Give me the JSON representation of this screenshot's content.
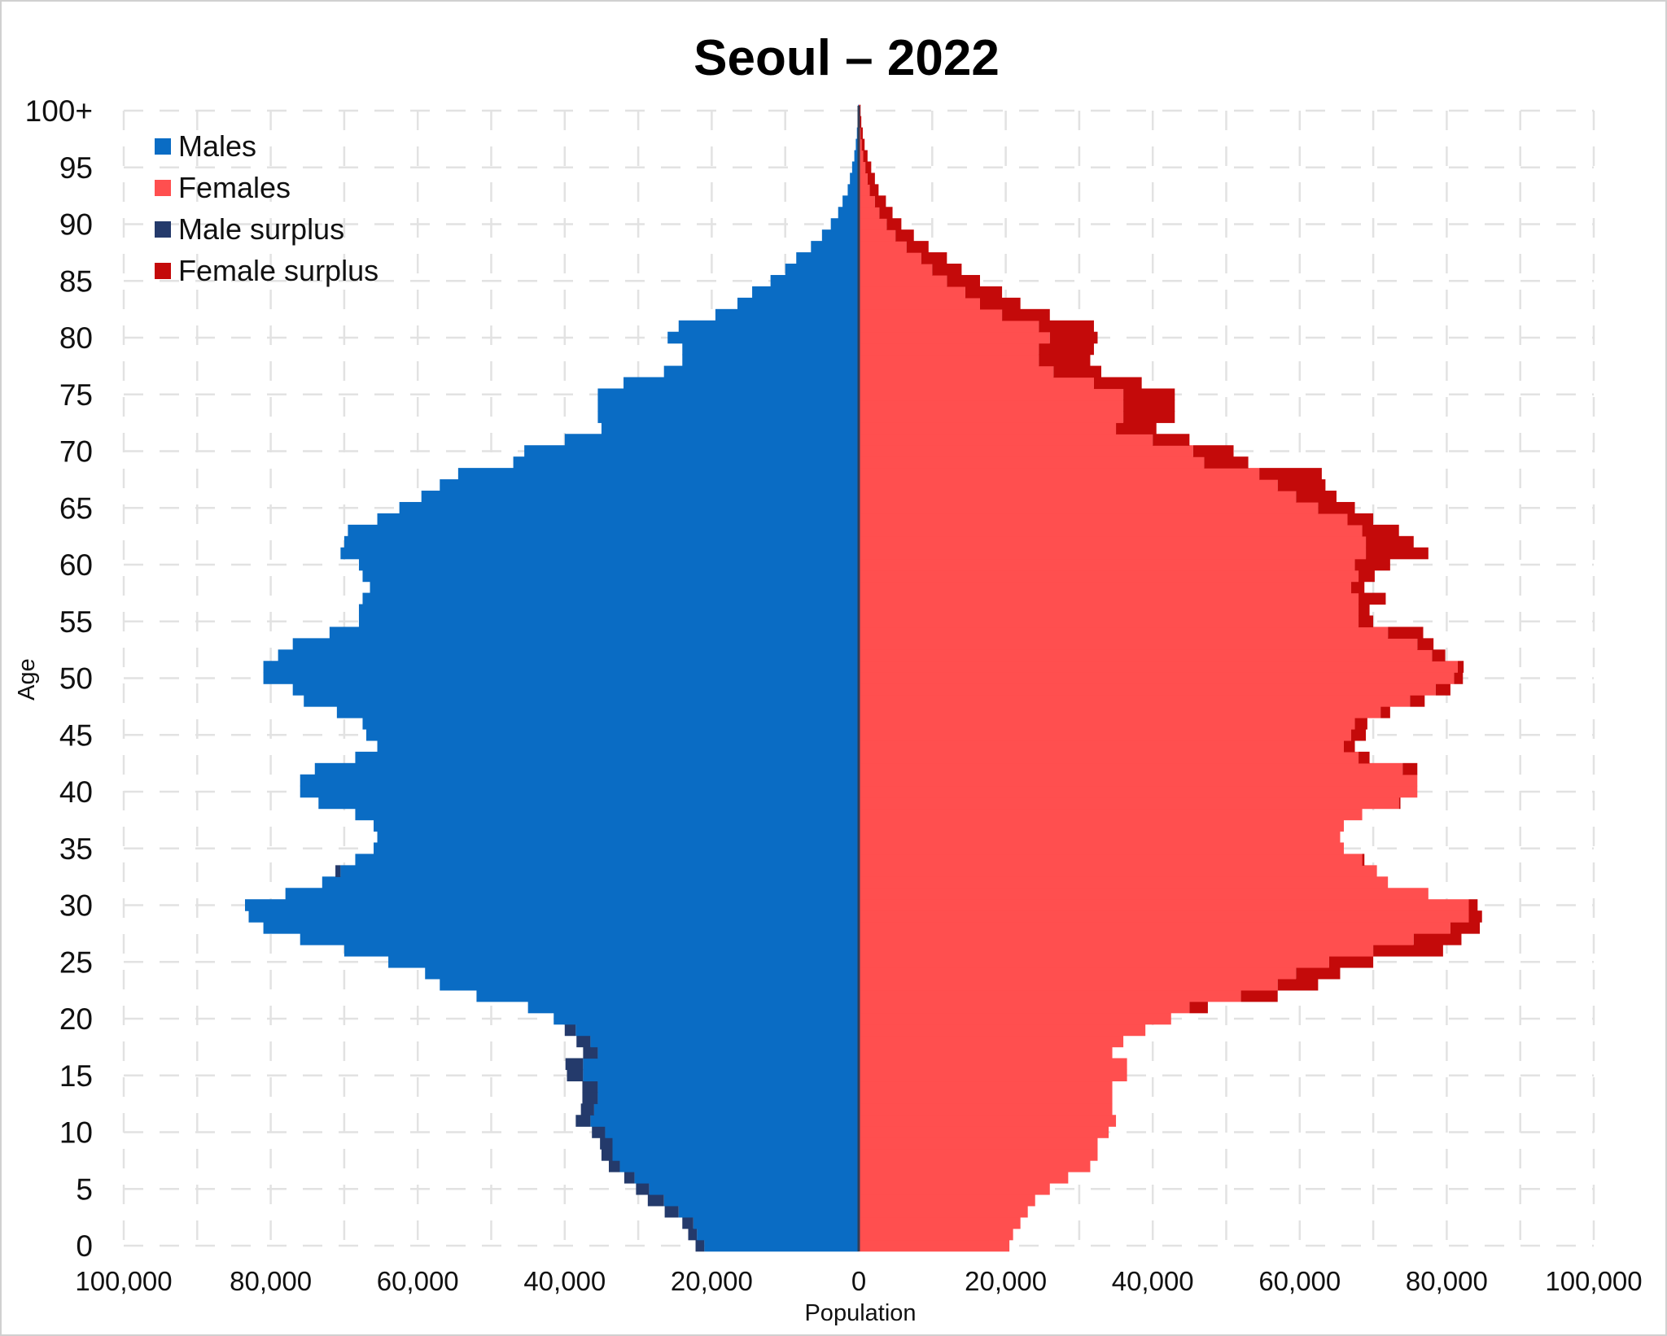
{
  "chart_data": {
    "type": "bar",
    "orientation": "horizontal",
    "subtype": "population-pyramid",
    "title": "Seoul – 2022",
    "xlabel": "Population",
    "ylabel": "Age",
    "xlim": [
      -100000,
      100000
    ],
    "x_ticks": [
      -100000,
      -80000,
      -60000,
      -40000,
      -20000,
      0,
      20000,
      40000,
      60000,
      80000,
      100000
    ],
    "x_tick_labels": [
      "100,000",
      "80,000",
      "60,000",
      "40,000",
      "20,000",
      "0",
      "20,000",
      "40,000",
      "60,000",
      "80,000",
      "100,000"
    ],
    "y_ticks": [
      0,
      5,
      10,
      15,
      20,
      25,
      30,
      35,
      40,
      45,
      50,
      55,
      60,
      65,
      70,
      75,
      80,
      85,
      90,
      95,
      100
    ],
    "y_tick_labels": [
      "0",
      "5",
      "10",
      "15",
      "20",
      "25",
      "30",
      "35",
      "40",
      "45",
      "50",
      "55",
      "60",
      "65",
      "70",
      "75",
      "80",
      "85",
      "90",
      "95",
      "100+"
    ],
    "grid": true,
    "legend_position": "top-left",
    "colors": {
      "males": "#0a6cc4",
      "females": "#ff4f4f",
      "male_surplus": "#243a6b",
      "female_surplus": "#c40a0a",
      "center_line": "#333e55"
    },
    "legend": [
      {
        "label": "Males",
        "color": "#0a6cc4"
      },
      {
        "label": "Females",
        "color": "#ff4f4f"
      },
      {
        "label": "Male surplus",
        "color": "#243a6b"
      },
      {
        "label": "Female surplus",
        "color": "#c40a0a"
      }
    ],
    "ages": [
      0,
      1,
      2,
      3,
      4,
      5,
      6,
      7,
      8,
      9,
      10,
      11,
      12,
      13,
      14,
      15,
      16,
      17,
      18,
      19,
      20,
      21,
      22,
      23,
      24,
      25,
      26,
      27,
      28,
      29,
      30,
      31,
      32,
      33,
      34,
      35,
      36,
      37,
      38,
      39,
      40,
      41,
      42,
      43,
      44,
      45,
      46,
      47,
      48,
      49,
      50,
      51,
      52,
      53,
      54,
      55,
      56,
      57,
      58,
      59,
      60,
      61,
      62,
      63,
      64,
      65,
      66,
      67,
      68,
      69,
      70,
      71,
      72,
      73,
      74,
      75,
      76,
      77,
      78,
      79,
      80,
      81,
      82,
      83,
      84,
      85,
      86,
      87,
      88,
      89,
      90,
      91,
      92,
      93,
      94,
      95,
      96,
      97,
      98,
      99,
      100
    ],
    "series": [
      {
        "name": "Males",
        "values": [
          21000,
          22000,
          22500,
          24500,
          26500,
          28500,
          30500,
          32500,
          33500,
          33500,
          34500,
          36500,
          36000,
          35500,
          35500,
          37500,
          37500,
          35500,
          36500,
          38500,
          41500,
          45000,
          52000,
          57000,
          59000,
          64000,
          70000,
          76000,
          81000,
          83000,
          83500,
          78000,
          73000,
          70500,
          68500,
          66000,
          65500,
          66000,
          68500,
          73500,
          76000,
          76000,
          74000,
          68500,
          65500,
          67000,
          67500,
          71000,
          75500,
          77000,
          81000,
          81000,
          79000,
          77000,
          72000,
          68000,
          68000,
          67500,
          66500,
          67500,
          68000,
          70500,
          70000,
          69500,
          65500,
          62500,
          59500,
          57000,
          54500,
          47000,
          45500,
          40000,
          35000,
          35500,
          35500,
          35500,
          32000,
          26500,
          24000,
          24000,
          26000,
          24500,
          19500,
          16500,
          14500,
          12000,
          10000,
          8500,
          6500,
          5000,
          3800,
          2800,
          2200,
          1500,
          1200,
          900,
          600,
          400,
          250,
          150,
          100
        ]
      },
      {
        "name": "Females",
        "values": [
          20500,
          21000,
          22000,
          23000,
          24000,
          26000,
          28500,
          31500,
          32500,
          32500,
          34000,
          35000,
          34500,
          34500,
          34500,
          36500,
          36500,
          34500,
          36000,
          39000,
          42500,
          45000,
          52000,
          57000,
          59500,
          64000,
          70000,
          75500,
          80500,
          83000,
          83000,
          77500,
          72000,
          70500,
          68500,
          66000,
          65500,
          66000,
          68500,
          73500,
          76000,
          76000,
          74000,
          68000,
          66000,
          67000,
          67500,
          71000,
          75000,
          78500,
          81000,
          81500,
          78000,
          76000,
          72000,
          68000,
          68000,
          68000,
          67000,
          68000,
          67500,
          69000,
          69000,
          68500,
          66500,
          62500,
          59500,
          57000,
          54500,
          47000,
          45500,
          40000,
          35000,
          36000,
          36000,
          36000,
          32000,
          26500,
          24500,
          24500,
          26000,
          24500,
          19500,
          16500,
          14500,
          12000,
          10000,
          8500,
          6500,
          5000,
          3800,
          2800,
          2200,
          1500,
          1200,
          900,
          600,
          400,
          250,
          150,
          100
        ]
      },
      {
        "name": "Male surplus",
        "values": [
          1200,
          1200,
          1500,
          1900,
          2200,
          1800,
          1400,
          1500,
          1500,
          1700,
          1800,
          2000,
          1800,
          2100,
          2100,
          2200,
          2400,
          2000,
          1900,
          1500,
          0,
          0,
          0,
          0,
          0,
          0,
          0,
          0,
          0,
          0,
          0,
          0,
          0,
          700,
          0,
          0,
          0,
          0,
          0,
          0,
          0,
          0,
          0,
          0,
          0,
          0,
          0,
          0,
          0,
          0,
          0,
          0,
          0,
          0,
          0,
          0,
          0,
          0,
          0,
          0,
          0,
          0,
          0,
          0,
          0,
          0,
          0,
          0,
          0,
          0,
          0,
          0,
          0,
          0,
          0,
          0,
          0,
          0,
          0,
          0,
          0,
          0,
          0,
          0,
          0,
          0,
          0,
          0,
          0,
          0,
          0,
          0,
          0,
          0,
          0,
          0,
          0,
          0,
          0,
          0,
          0
        ]
      },
      {
        "name": "Female surplus",
        "values": [
          0,
          0,
          0,
          0,
          0,
          0,
          0,
          0,
          0,
          0,
          0,
          0,
          0,
          0,
          0,
          0,
          0,
          0,
          0,
          0,
          0,
          2500,
          5000,
          5500,
          6000,
          6000,
          9500,
          6500,
          4000,
          1800,
          1200,
          0,
          0,
          0,
          300,
          0,
          0,
          0,
          0,
          200,
          0,
          0,
          2000,
          1500,
          1500,
          2000,
          1700,
          1300,
          2000,
          2000,
          1200,
          800,
          1800,
          2200,
          4800,
          2000,
          1500,
          3700,
          1800,
          2200,
          4800,
          8500,
          6500,
          5000,
          3500,
          5000,
          5500,
          6500,
          8500,
          6000,
          5500,
          5000,
          5500,
          7000,
          7000,
          7000,
          6500,
          6500,
          7000,
          7500,
          6500,
          7500,
          6500,
          5500,
          5000,
          4500,
          4000,
          3500,
          3000,
          2500,
          2000,
          1800,
          1500,
          1200,
          1000,
          800,
          600,
          400,
          300,
          200,
          150
        ]
      }
    ]
  }
}
